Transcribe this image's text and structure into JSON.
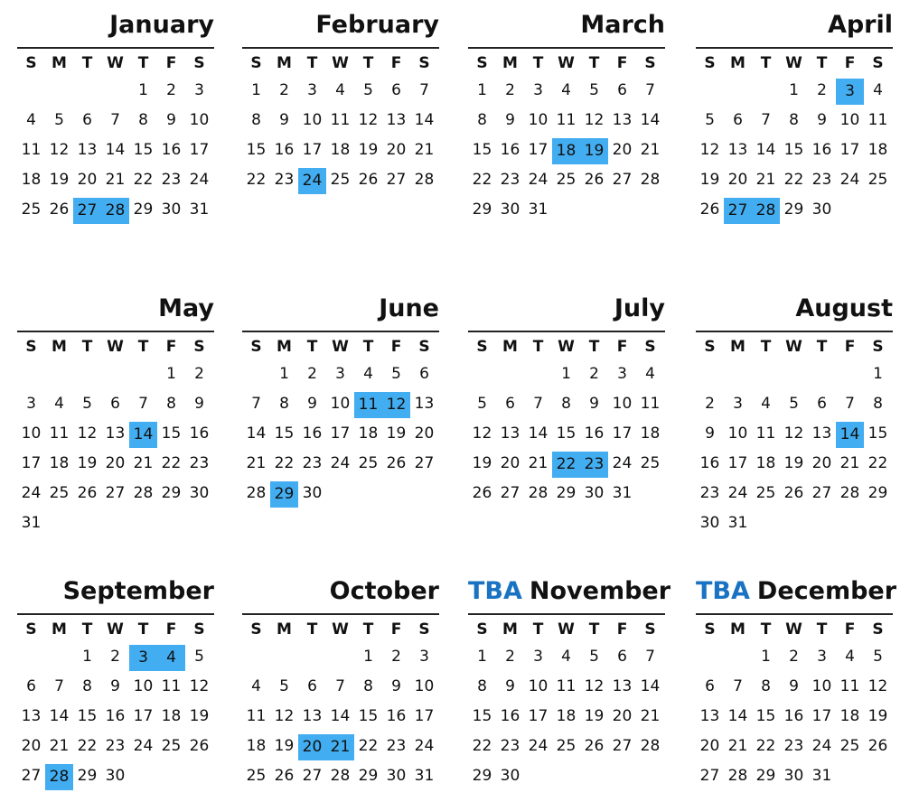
{
  "weekdays": [
    "S",
    "M",
    "T",
    "W",
    "T",
    "F",
    "S"
  ],
  "highlight_color": "#42adf0",
  "tba_label": "TBA",
  "months": [
    {
      "name": "January",
      "start": 4,
      "days": 31,
      "highlighted": [
        27,
        28
      ],
      "tba": false
    },
    {
      "name": "February",
      "start": 0,
      "days": 28,
      "highlighted": [
        24
      ],
      "tba": false
    },
    {
      "name": "March",
      "start": 0,
      "days": 31,
      "highlighted": [
        18,
        19
      ],
      "tba": false
    },
    {
      "name": "April",
      "start": 3,
      "days": 30,
      "highlighted": [
        3,
        27,
        28
      ],
      "tba": false
    },
    {
      "name": "May",
      "start": 5,
      "days": 31,
      "highlighted": [
        14
      ],
      "tba": false
    },
    {
      "name": "June",
      "start": 1,
      "days": 30,
      "highlighted": [
        11,
        12,
        29
      ],
      "tba": false
    },
    {
      "name": "July",
      "start": 3,
      "days": 31,
      "highlighted": [
        22,
        23
      ],
      "tba": false
    },
    {
      "name": "August",
      "start": 6,
      "days": 31,
      "highlighted": [
        14
      ],
      "tba": false
    },
    {
      "name": "September",
      "start": 2,
      "days": 30,
      "highlighted": [
        3,
        4,
        28
      ],
      "tba": false
    },
    {
      "name": "October",
      "start": 4,
      "days": 31,
      "highlighted": [
        20,
        21
      ],
      "tba": false
    },
    {
      "name": "November",
      "start": 0,
      "days": 30,
      "highlighted": [],
      "tba": true
    },
    {
      "name": "December",
      "start": 2,
      "days": 31,
      "highlighted": [],
      "tba": true
    }
  ]
}
